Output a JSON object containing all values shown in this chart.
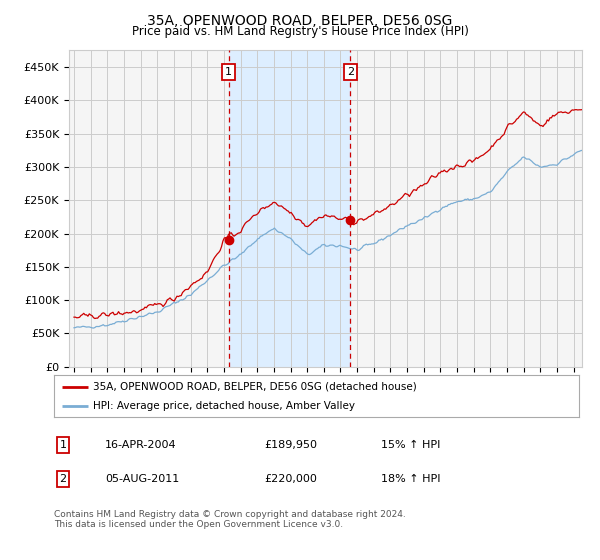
{
  "title": "35A, OPENWOOD ROAD, BELPER, DE56 0SG",
  "subtitle": "Price paid vs. HM Land Registry's House Price Index (HPI)",
  "ylabel_ticks": [
    "£0",
    "£50K",
    "£100K",
    "£150K",
    "£200K",
    "£250K",
    "£300K",
    "£350K",
    "£400K",
    "£450K"
  ],
  "ylim": [
    0,
    475000
  ],
  "xlim_start": 1994.7,
  "xlim_end": 2025.5,
  "sale1_x": 2004.29,
  "sale1_y": 189950,
  "sale2_x": 2011.59,
  "sale2_y": 220000,
  "sale1_label": "1",
  "sale2_label": "2",
  "legend_line1": "35A, OPENWOOD ROAD, BELPER, DE56 0SG (detached house)",
  "legend_line2": "HPI: Average price, detached house, Amber Valley",
  "table_row1_num": "1",
  "table_row1_date": "16-APR-2004",
  "table_row1_price": "£189,950",
  "table_row1_hpi": "15% ↑ HPI",
  "table_row2_num": "2",
  "table_row2_date": "05-AUG-2011",
  "table_row2_price": "£220,000",
  "table_row2_hpi": "18% ↑ HPI",
  "footnote": "Contains HM Land Registry data © Crown copyright and database right 2024.\nThis data is licensed under the Open Government Licence v3.0.",
  "red_line_color": "#cc0000",
  "blue_line_color": "#7aadd4",
  "shade_color": "#ddeeff",
  "grid_color": "#cccccc",
  "background_color": "#ffffff",
  "plot_bg_color": "#f5f5f5"
}
